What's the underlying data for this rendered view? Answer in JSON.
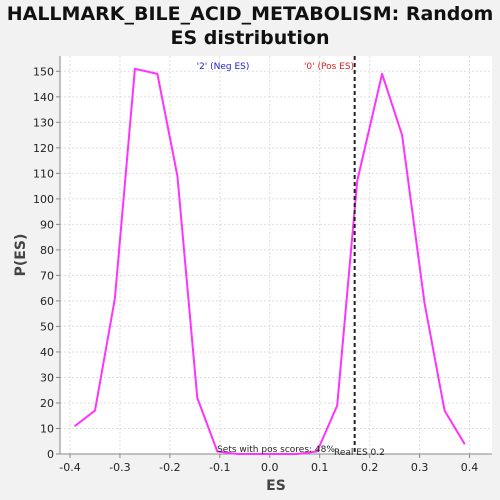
{
  "chart_data": {
    "type": "line",
    "title_line1": "HALLMARK_BILE_ACID_METABOLISM: Random",
    "title_line2": "ES distribution",
    "xlabel": "ES",
    "ylabel": "P(ES)",
    "xlim": [
      -0.42,
      0.445
    ],
    "ylim": [
      0,
      156
    ],
    "xticks": [
      -0.4,
      -0.3,
      -0.2,
      -0.1,
      0.0,
      0.1,
      0.2,
      0.3,
      0.4
    ],
    "xtick_labels": [
      "-0.4",
      "-0.3",
      "-0.2",
      "-0.1",
      "0.0",
      "0.1",
      "0.2",
      "0.3",
      "0.4"
    ],
    "yticks": [
      0,
      10,
      20,
      30,
      40,
      50,
      60,
      70,
      80,
      90,
      100,
      110,
      120,
      130,
      140,
      150
    ],
    "grid": true,
    "series": [
      {
        "name": "",
        "color": "#ff33ff",
        "x": [
          -0.39,
          -0.35,
          -0.31,
          -0.27,
          -0.225,
          -0.185,
          -0.145,
          -0.105,
          -0.065,
          -0.025,
          0.015,
          0.055,
          0.095,
          0.135,
          0.175,
          0.225,
          0.265,
          0.31,
          0.35,
          0.39
        ],
        "y": [
          11,
          17,
          61,
          151,
          149,
          109,
          22,
          1,
          0,
          0,
          0,
          0,
          1,
          19,
          107,
          149,
          125,
          59,
          17,
          4
        ]
      }
    ],
    "real_es": 0.17,
    "annotations": {
      "neg_label": "'2' (Neg ES)",
      "pos_label": "'0' (Pos ES)",
      "pos_scores": "Sets with pos scores: 48%",
      "real_es_label": "Real ES 0.2"
    },
    "colors": {
      "neg": "#2222cc",
      "pos": "#dd2222",
      "grid": "#dddddd"
    }
  }
}
